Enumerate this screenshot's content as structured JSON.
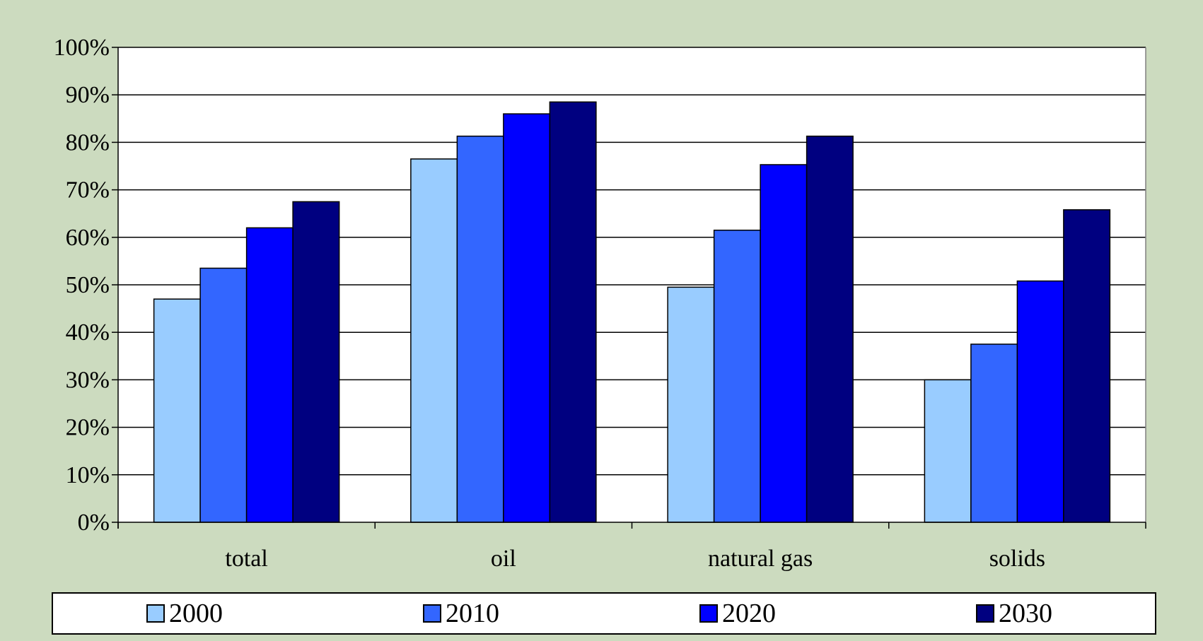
{
  "chart_data": {
    "type": "bar",
    "title": "",
    "xlabel": "",
    "ylabel": "",
    "categories": [
      "total",
      "oil",
      "natural gas",
      "solids"
    ],
    "series": [
      {
        "name": "2000",
        "color": "#99ccff",
        "values": [
          47,
          76.5,
          49.5,
          30
        ]
      },
      {
        "name": "2010",
        "color": "#3366ff",
        "values": [
          53.5,
          81.3,
          61.5,
          37.5
        ]
      },
      {
        "name": "2020",
        "color": "#0000ff",
        "values": [
          62,
          86,
          75.3,
          50.8
        ]
      },
      {
        "name": "2030",
        "color": "#000080",
        "values": [
          67.5,
          88.5,
          81.3,
          65.8
        ]
      }
    ],
    "ylim": [
      0,
      100
    ],
    "yticks": [
      "0%",
      "10%",
      "20%",
      "30%",
      "40%",
      "50%",
      "60%",
      "70%",
      "80%",
      "90%",
      "100%"
    ],
    "grid": true,
    "legend": "bottom"
  }
}
